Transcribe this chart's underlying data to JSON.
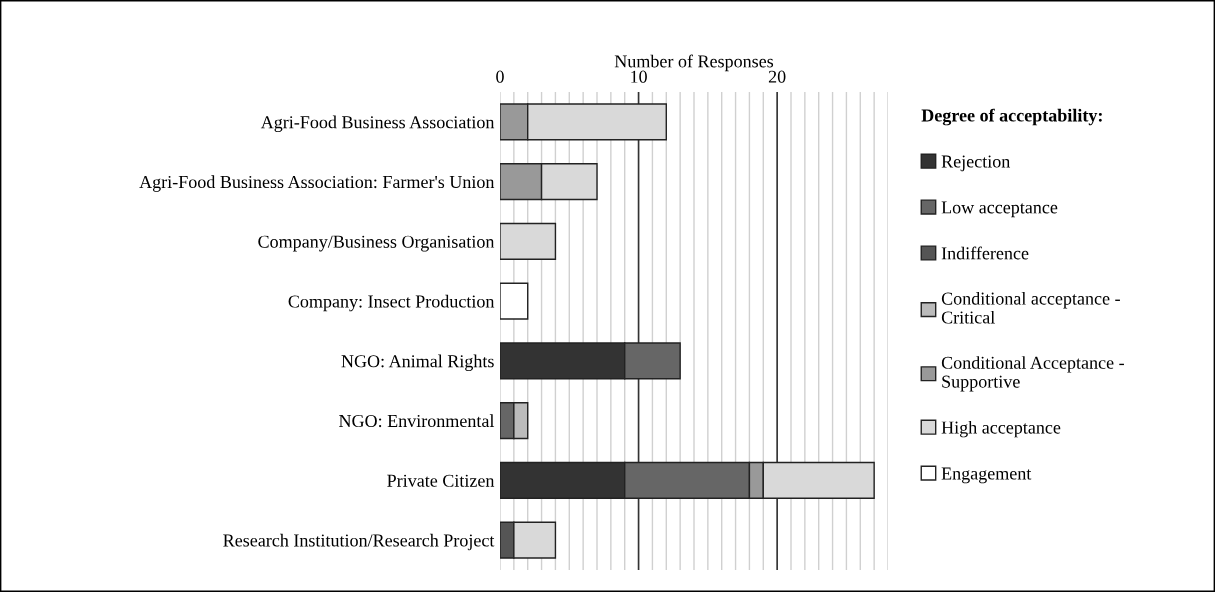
{
  "chart_data": {
    "type": "bar",
    "orientation": "horizontal",
    "stacked": true,
    "xlabel": "Number of Responses",
    "legend_title": "Degree of acceptability:",
    "legend": "right",
    "grid": "x",
    "categories": [
      "Agri-Food Business Association",
      "Agri-Food Business Association: Farmer's Union",
      "Company/Business Organisation",
      "Company: Insect Production",
      "NGO: Animal Rights",
      "NGO: Environmental",
      "Private Citizen",
      "Research Institution/Research Project"
    ],
    "xlim": [
      0,
      28
    ],
    "xticks": [
      0,
      {
        "value": 1,
        "label": null
      },
      {
        "value": 2,
        "label": null
      },
      {
        "value": 3,
        "label": null
      },
      {
        "value": 4,
        "label": null
      },
      {
        "value": 5,
        "label": null
      },
      {
        "value": 6,
        "label": null
      },
      {
        "value": 7,
        "label": null
      },
      {
        "value": 8,
        "label": null
      },
      {
        "value": 9,
        "label": null
      },
      10,
      {
        "value": 11,
        "label": null
      },
      {
        "value": 12,
        "label": null
      },
      {
        "value": 13,
        "label": null
      },
      {
        "value": 14,
        "label": null
      },
      {
        "value": 15,
        "label": null
      },
      {
        "value": 16,
        "label": null
      },
      {
        "value": 17,
        "label": null
      },
      {
        "value": 18,
        "label": null
      },
      {
        "value": 19,
        "label": null
      },
      20,
      {
        "value": 21,
        "label": null
      },
      {
        "value": 22,
        "label": null
      },
      {
        "value": 23,
        "label": null
      },
      {
        "value": 24,
        "label": null
      },
      {
        "value": 25,
        "label": null
      },
      {
        "value": 26,
        "label": null
      },
      {
        "value": 27,
        "label": null
      },
      {
        "value": 28,
        "label": null
      }
    ],
    "series": [
      {
        "name": "Rejection",
        "color": "#333333",
        "values": [
          null,
          null,
          null,
          null,
          9,
          null,
          9,
          null
        ]
      },
      {
        "name": "Low acceptance",
        "color": "#666666",
        "values": [
          null,
          null,
          null,
          null,
          4,
          1,
          9,
          null
        ]
      },
      {
        "name": "Indifference",
        "color": "#555555",
        "values": [
          null,
          null,
          null,
          null,
          null,
          null,
          null,
          1
        ]
      },
      {
        "name": "Conditional acceptance - Critical",
        "color": "#bbbbbb",
        "values": [
          null,
          null,
          null,
          null,
          null,
          1,
          null,
          null
        ]
      },
      {
        "name": "Conditional Acceptance - Supportive",
        "color": "#999999",
        "values": [
          2,
          3,
          null,
          null,
          null,
          null,
          1,
          null
        ]
      },
      {
        "name": "High acceptance",
        "color": "#d9d9d9",
        "values": [
          10,
          4,
          4,
          null,
          null,
          null,
          8,
          3
        ]
      },
      {
        "name": "Engagement",
        "color": "#ffffff",
        "values": [
          null,
          null,
          null,
          2,
          null,
          null,
          null,
          null
        ]
      }
    ]
  }
}
